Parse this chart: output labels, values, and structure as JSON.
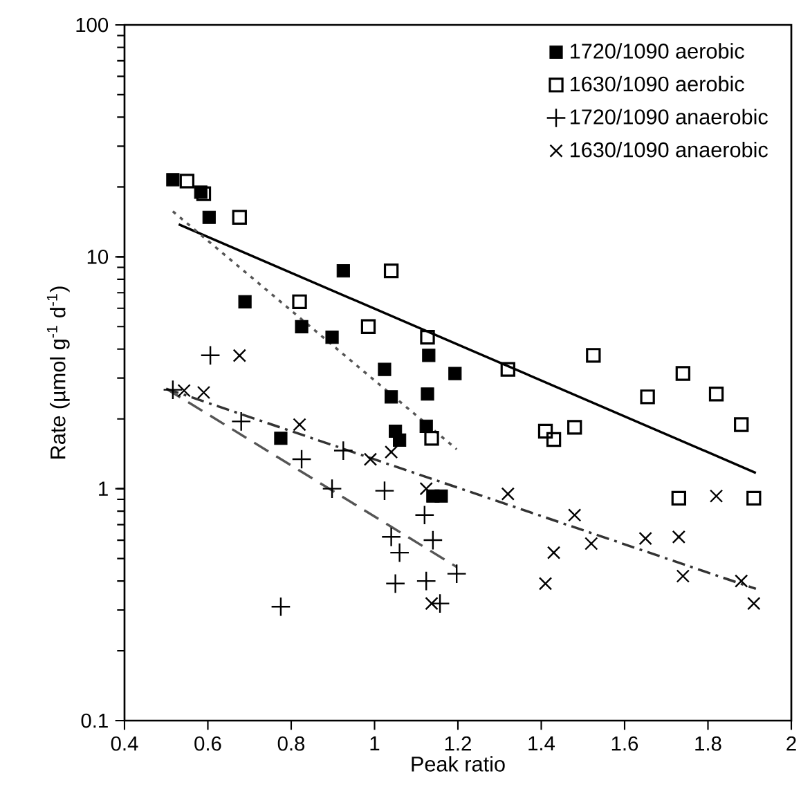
{
  "chart_data": {
    "type": "scatter",
    "xlabel": "Peak ratio",
    "ylabel": "Rate (µmol g$^{-1}$ d$^{-1}$)",
    "xlim": [
      0.4,
      2
    ],
    "xticks": [
      0.4,
      0.6,
      0.8,
      1,
      1.2,
      1.4,
      1.6,
      1.8,
      2
    ],
    "ylim": [
      0.1,
      100
    ],
    "yticks": [
      0.1,
      1,
      10,
      100
    ],
    "log": "y",
    "grid": false,
    "legend": "top right",
    "series": [
      {
        "name": "1720/1090 aerobic",
        "color": "#000000",
        "marker": "square",
        "x": [
          0.516,
          0.583,
          0.603,
          0.689,
          0.825,
          0.898,
          0.925,
          1.13,
          1.024,
          1.193,
          1.04,
          1.127,
          1.05,
          1.06,
          1.124,
          0.775,
          1.14,
          1.16
        ],
        "values": [
          21.5,
          19,
          14.8,
          6.4,
          5.0,
          4.5,
          8.7,
          3.76,
          3.27,
          3.14,
          2.49,
          2.56,
          1.77,
          1.62,
          1.86,
          1.65,
          0.93,
          0.93
        ]
      },
      {
        "name": "1630/1090 aerobic",
        "color": "#000000",
        "marker": "square-open",
        "x": [
          0.55,
          0.59,
          0.676,
          0.82,
          0.985,
          1.04,
          1.127,
          1.137,
          1.32,
          1.525,
          1.655,
          1.74,
          1.82,
          1.88,
          1.41,
          1.43,
          1.48,
          1.73,
          1.91
        ],
        "values": [
          21.2,
          18.7,
          14.8,
          6.4,
          5.0,
          8.7,
          4.5,
          1.65,
          3.27,
          3.76,
          2.49,
          3.14,
          2.56,
          1.89,
          1.77,
          1.63,
          1.84,
          0.91,
          0.91
        ]
      },
      {
        "name": "1720/1090 anaerobic",
        "color": "#000000",
        "marker": "plus",
        "x": [
          0.516,
          0.606,
          0.68,
          0.825,
          0.925,
          0.898,
          1.024,
          0.775,
          1.12,
          1.04,
          1.06,
          1.05,
          1.124,
          1.14,
          1.157,
          1.197
        ],
        "values": [
          2.67,
          3.76,
          1.95,
          1.34,
          1.46,
          1.0,
          0.98,
          0.31,
          0.77,
          0.62,
          0.53,
          0.39,
          0.4,
          0.6,
          0.32,
          0.43
        ]
      },
      {
        "name": "1630/1090 anaerobic",
        "color": "#000000",
        "marker": "cross",
        "x": [
          0.543,
          0.59,
          0.676,
          0.82,
          0.99,
          1.04,
          1.124,
          1.137,
          1.32,
          1.48,
          1.43,
          1.41,
          1.52,
          1.65,
          1.73,
          1.74,
          1.82,
          1.88,
          1.91
        ],
        "values": [
          2.65,
          2.6,
          3.75,
          1.89,
          1.34,
          1.44,
          1.0,
          0.32,
          0.95,
          0.77,
          0.53,
          0.39,
          0.58,
          0.61,
          0.62,
          0.42,
          0.93,
          0.4,
          0.32
        ]
      },
      {
        "type": "line",
        "color": "#000000",
        "line_style": "solid",
        "x": [
          0.53,
          1.915
        ],
        "values": [
          13.8,
          1.17
        ]
      },
      {
        "type": "line",
        "color": "#555555",
        "line_style": "dotted",
        "x": [
          0.516,
          1.197
        ],
        "values": [
          15.7,
          1.48
        ]
      },
      {
        "type": "line",
        "color": "#555555",
        "line_style": "dashed",
        "x": [
          0.5,
          1.197
        ],
        "values": [
          2.7,
          0.46
        ]
      },
      {
        "type": "line",
        "color": "#333333",
        "line_style": "dashdot",
        "x": [
          0.5,
          1.915
        ],
        "values": [
          2.7,
          0.37
        ]
      }
    ]
  }
}
